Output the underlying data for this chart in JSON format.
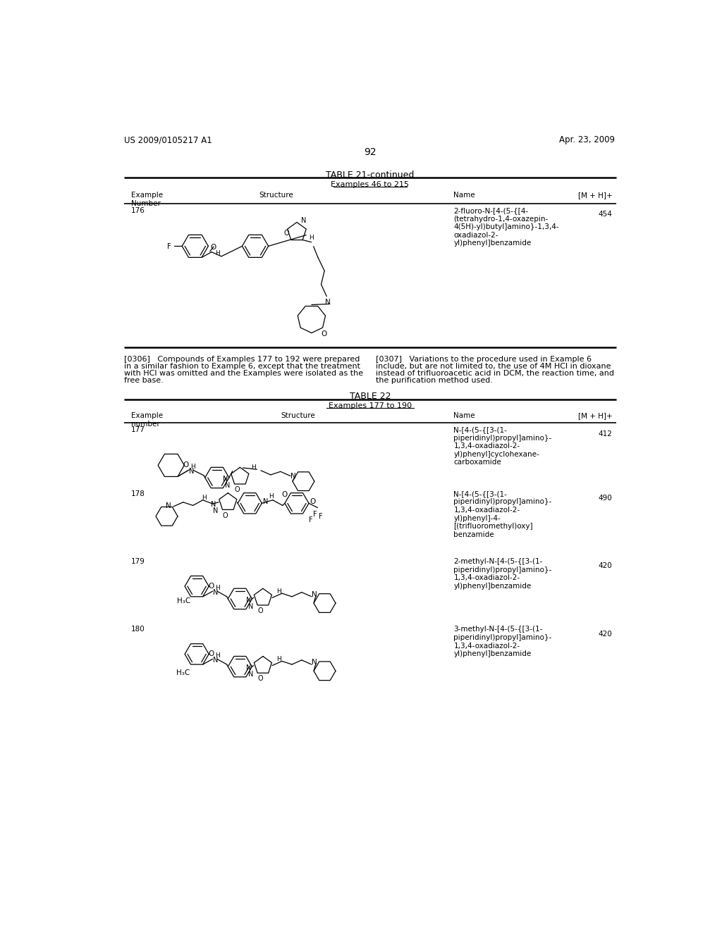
{
  "page_header_left": "US 2009/0105217 A1",
  "page_header_right": "Apr. 23, 2009",
  "page_number": "92",
  "table21_title": "TABLE 21-continued",
  "table21_subtitle": "Examples 46 to 215",
  "ex176_num": "176",
  "ex176_name": "2-fluoro-N-[4-(5-{[4-\n(tetrahydro-1,4-oxazepin-\n4(5H)-yl)butyl]amino}-1,3,4-\noxadiazol-2-\nyl)phenyl]benzamide",
  "ex176_mh": "454",
  "para306_lines": [
    "[0306]   Compounds of Examples 177 to 192 were prepared",
    "in a similar fashion to Example 6, except that the treatment",
    "with HCl was omitted and the Examples were isolated as the",
    "free base."
  ],
  "para307_lines": [
    "[0307]   Variations to the procedure used in Example 6",
    "include, but are not limited to, the use of 4M HCl in dioxane",
    "instead of trifluoroacetic acid in DCM, the reaction time, and",
    "the purification method used."
  ],
  "table22_title": "TABLE 22",
  "table22_subtitle": "Examples 177 to 190",
  "ex177_num": "177",
  "ex177_name": "N-[4-(5-{[3-(1-\npiperidinyl)propyl]amino}-\n1,3,4-oxadiazol-2-\nyl)phenyl]cyclohexane-\ncarboxamide",
  "ex177_mh": "412",
  "ex178_num": "178",
  "ex178_name": "N-[4-(5-{[3-(1-\npiperidinyl)propyl]amino}-\n1,3,4-oxadiazol-2-\nyl)phenyl]-4-\n[(trifluoromethyl)oxy]\nbenzamide",
  "ex178_mh": "490",
  "ex179_num": "179",
  "ex179_name": "2-methyl-N-[4-(5-{[3-(1-\npiperidinyl)propyl]amino}-\n1,3,4-oxadiazol-2-\nyl)phenyl]benzamide",
  "ex179_mh": "420",
  "ex180_num": "180",
  "ex180_name": "3-methyl-N-[4-(5-{[3-(1-\npiperidinyl)propyl]amino}-\n1,3,4-oxadiazol-2-\nyl)phenyl]benzamide",
  "ex180_mh": "420",
  "bg_color": "#ffffff"
}
